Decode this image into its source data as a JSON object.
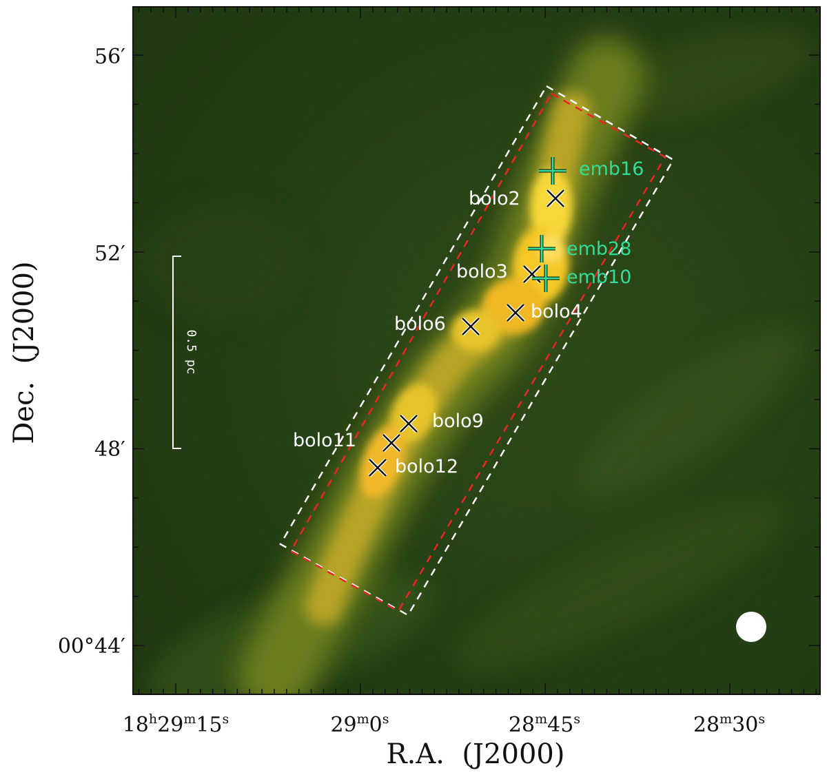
{
  "axes": {
    "xlabel": "R.A.  (J2000)",
    "ylabel": "Dec.  (J2000)",
    "x_ticks": [
      {
        "h": "18",
        "m": "29",
        "s": "15"
      },
      {
        "m": "29",
        "s": "0"
      },
      {
        "m": "28",
        "s": "45"
      },
      {
        "m": "28",
        "s": "30"
      }
    ],
    "y_ticks": [
      {
        "label": "56′"
      },
      {
        "label": "52′"
      },
      {
        "label": "48′"
      },
      {
        "label": "00°44′"
      }
    ]
  },
  "scale_bar": {
    "label": "0.5 pc"
  },
  "sources": {
    "bolometer": [
      "bolo2",
      "bolo3",
      "bolo4",
      "bolo6",
      "bolo9",
      "bolo11",
      "bolo12"
    ],
    "embedded": [
      "emb16",
      "emb28",
      "emb10"
    ]
  },
  "colors": {
    "background_map": "#203a12",
    "filament": "#f0c830",
    "bolo_marker": "#111111",
    "emb_marker": "#33dd99",
    "box_outer": "#ffffff",
    "box_inner": "#ee2222"
  },
  "beam": {
    "shape": "circle",
    "color": "#ffffff"
  }
}
